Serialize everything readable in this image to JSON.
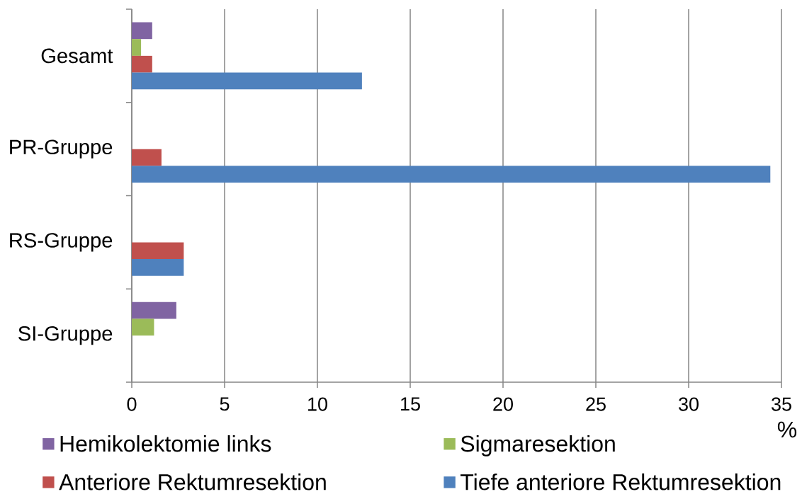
{
  "chart_data": {
    "type": "bar",
    "orientation": "horizontal",
    "categories": [
      "Gesamt",
      "PR-Gruppe",
      "RS-Gruppe",
      "SI-Gruppe"
    ],
    "series": [
      {
        "name": "Hemikolektomie links",
        "color": "#8064a2",
        "values": [
          1.1,
          0,
          0,
          2.4
        ]
      },
      {
        "name": "Sigmaresektion",
        "color": "#9bbb59",
        "values": [
          0.5,
          0,
          0,
          1.2
        ]
      },
      {
        "name": "Anteriore Rektumresektion",
        "color": "#c0504d",
        "values": [
          1.1,
          1.6,
          2.8,
          0
        ]
      },
      {
        "name": "Tiefe anteriore Rektumresektion",
        "color": "#4f81bd",
        "values": [
          12.4,
          34.4,
          2.8,
          0
        ]
      }
    ],
    "xlabel": "%",
    "xlim": [
      0,
      35
    ],
    "xticks": [
      0,
      5,
      10,
      15,
      20,
      25,
      30,
      35
    ],
    "grid": "x",
    "legend": "bottom"
  }
}
